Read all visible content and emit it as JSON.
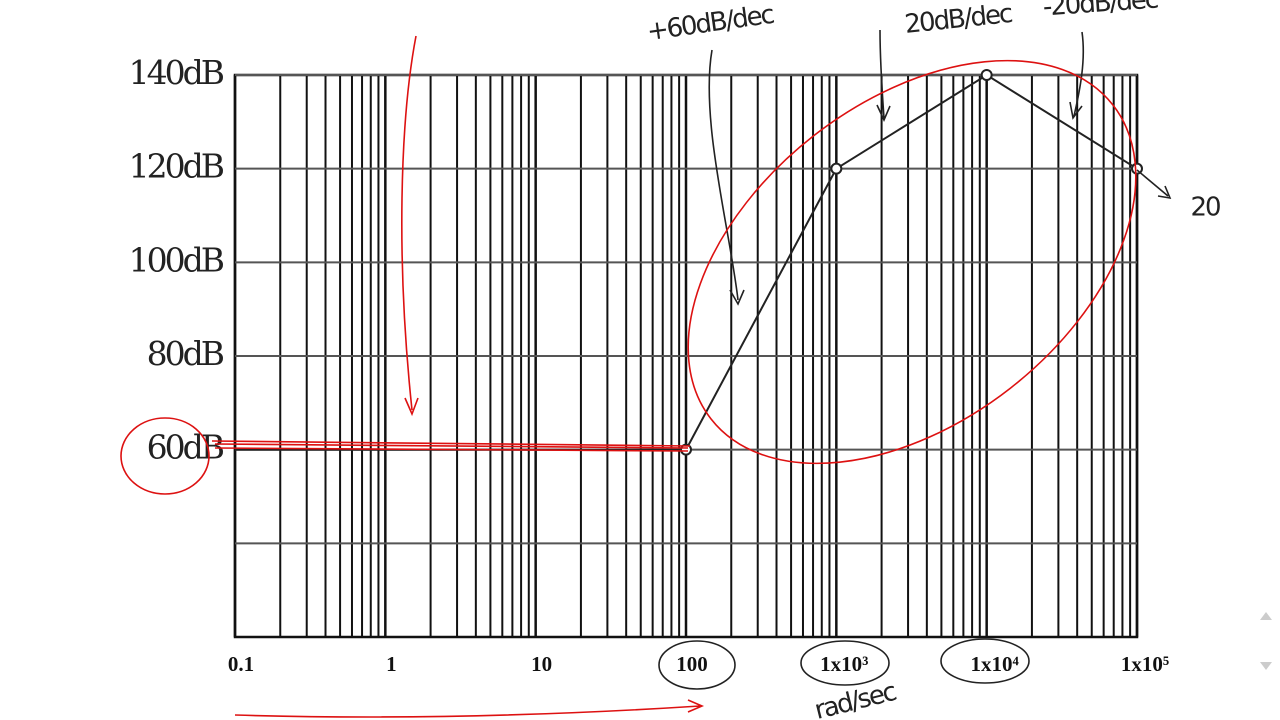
{
  "chart_data": {
    "type": "line",
    "xscale": "log",
    "x": [
      0.1,
      100,
      1000,
      10000,
      100000
    ],
    "series": [
      {
        "values": [
          60,
          60,
          120,
          140,
          120
        ],
        "color": "#222222"
      }
    ],
    "xlim": [
      0.1,
      100000
    ],
    "xticks": [
      0.1,
      1,
      10,
      100,
      {
        "value": 1000,
        "label": "1x10³"
      },
      {
        "value": 10000,
        "label": "1x10⁴"
      },
      {
        "value": 100000,
        "label": "1x10⁵"
      }
    ],
    "ylim": [
      20,
      140
    ],
    "yticks": [
      {
        "value": 40,
        "label": null
      },
      {
        "value": 60,
        "label": "60dB"
      },
      {
        "value": 80,
        "label": "80dB"
      },
      {
        "value": 100,
        "label": "100dB"
      },
      {
        "value": 120,
        "label": "120dB"
      },
      {
        "value": 140,
        "label": "140dB"
      }
    ],
    "grid": true,
    "annotations": [
      "+60dB/dec",
      "20dB/dec",
      "-20dB/dec",
      "20",
      "rad/sec"
    ]
  }
}
